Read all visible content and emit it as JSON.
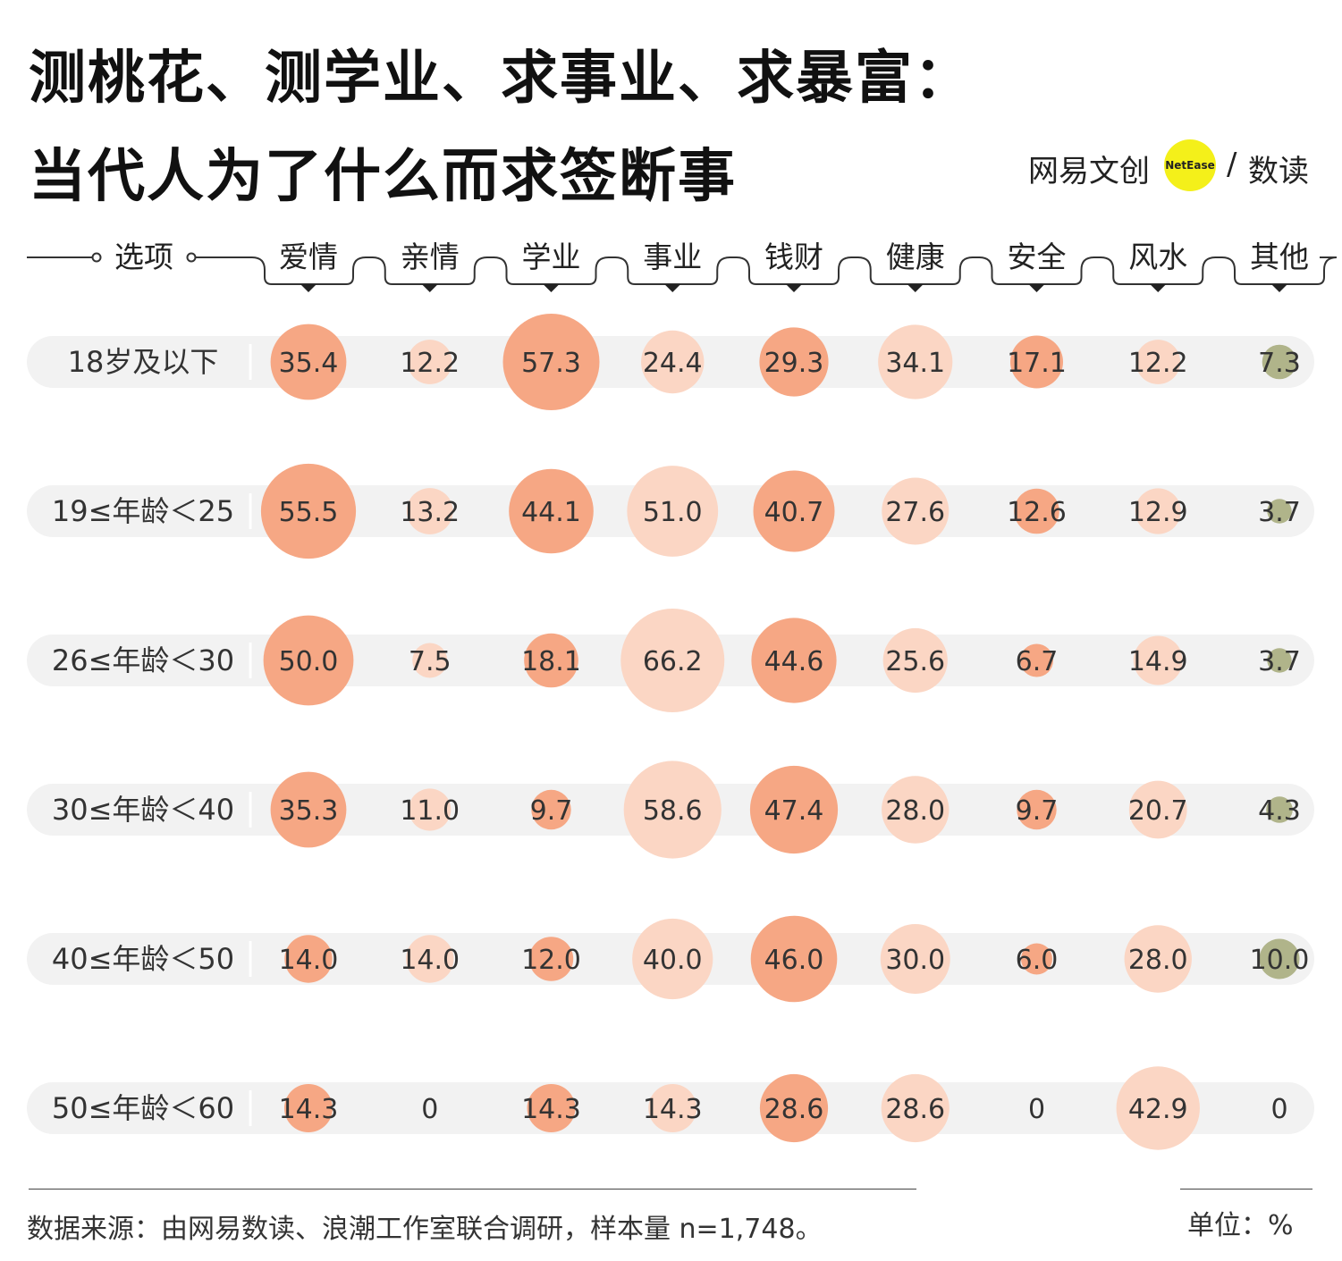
{
  "title": {
    "line1": "测桃花、测学业、求事业、求暴富：",
    "line2": "当代人为了什么而求签断事"
  },
  "brand": {
    "name": "网易文创",
    "badge": "NetEase",
    "sep": "/",
    "sub": "数读"
  },
  "header": {
    "options_label": "选项"
  },
  "footer": {
    "source": "数据来源：由网易数读、浪潮工作室联合调研，样本量 n=1,748。",
    "unit": "单位：%"
  },
  "colors": {
    "bubble_dark": "#f6a784",
    "bubble_light": "#fbd6c4",
    "bubble_other": "#b0b48a",
    "track": "#f2f2f2"
  },
  "chart_data": {
    "type": "bubble",
    "categories": [
      "爱情",
      "亲情",
      "学业",
      "事业",
      "钱财",
      "健康",
      "安全",
      "风水",
      "其他"
    ],
    "rows": [
      {
        "name": "18岁及以下",
        "values": [
          "35.4",
          "12.2",
          "57.3",
          "24.4",
          "29.3",
          "34.1",
          "17.1",
          "12.2",
          "7.3"
        ]
      },
      {
        "name": "19≤年龄＜25",
        "values": [
          "55.5",
          "13.2",
          "44.1",
          "51.0",
          "40.7",
          "27.6",
          "12.6",
          "12.9",
          "3.7"
        ]
      },
      {
        "name": "26≤年龄＜30",
        "values": [
          "50.0",
          "7.5",
          "18.1",
          "66.2",
          "44.6",
          "25.6",
          "6.7",
          "14.9",
          "3.7"
        ]
      },
      {
        "name": "30≤年龄＜40",
        "values": [
          "35.3",
          "11.0",
          "9.7",
          "58.6",
          "47.4",
          "28.0",
          "9.7",
          "20.7",
          "4.3"
        ]
      },
      {
        "name": "40≤年龄＜50",
        "values": [
          "14.0",
          "14.0",
          "12.0",
          "40.0",
          "46.0",
          "30.0",
          "6.0",
          "28.0",
          "10.0"
        ]
      },
      {
        "name": "50≤年龄＜60",
        "values": [
          "14.3",
          "0",
          "14.3",
          "14.3",
          "28.6",
          "28.6",
          "0",
          "42.9",
          "0"
        ]
      }
    ],
    "unit": "%"
  }
}
